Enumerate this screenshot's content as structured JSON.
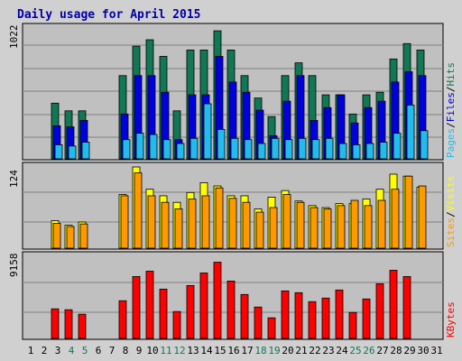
{
  "chart_data": [
    {
      "type": "bar",
      "title": "Daily usage for April 2015",
      "panel": "top",
      "y_tick_label": "1022",
      "right_labels": [
        "Pages",
        "/",
        "Files",
        "/",
        "Hits"
      ],
      "ylim": [
        0,
        1022
      ],
      "x": [
        1,
        2,
        3,
        4,
        5,
        6,
        7,
        8,
        9,
        10,
        11,
        12,
        13,
        14,
        15,
        16,
        17,
        18,
        19,
        20,
        21,
        22,
        23,
        24,
        25,
        26,
        27,
        28,
        29,
        30,
        31
      ],
      "series": [
        {
          "name": "Hits",
          "values": [
            0,
            0,
            435,
            375,
            375,
            0,
            0,
            650,
            880,
            930,
            800,
            375,
            850,
            850,
            1000,
            850,
            650,
            475,
            330,
            650,
            750,
            650,
            500,
            500,
            350,
            500,
            520,
            780,
            900,
            850,
            0
          ]
        },
        {
          "name": "Files",
          "values": [
            0,
            0,
            258,
            250,
            300,
            0,
            0,
            350,
            650,
            650,
            520,
            150,
            500,
            500,
            800,
            600,
            520,
            380,
            180,
            450,
            650,
            300,
            400,
            500,
            280,
            400,
            450,
            600,
            680,
            650,
            0
          ]
        },
        {
          "name": "Pages",
          "values": [
            0,
            0,
            110,
            100,
            130,
            0,
            0,
            150,
            200,
            190,
            150,
            120,
            160,
            430,
            230,
            160,
            150,
            120,
            160,
            150,
            160,
            150,
            160,
            120,
            110,
            120,
            130,
            200,
            420,
            220,
            0
          ]
        }
      ],
      "colors": [
        "#117755",
        "#0000dd",
        "#22bbee"
      ]
    },
    {
      "type": "bar",
      "panel": "middle",
      "y_tick_label": "124",
      "right_labels": [
        "Sites",
        "/",
        "Visits"
      ],
      "ylim": [
        0,
        124
      ],
      "x": [
        1,
        2,
        3,
        4,
        5,
        6,
        7,
        8,
        9,
        10,
        11,
        12,
        13,
        14,
        15,
        16,
        17,
        18,
        19,
        20,
        21,
        22,
        23,
        24,
        25,
        26,
        27,
        28,
        29,
        30,
        31
      ],
      "series": [
        {
          "name": "Visits",
          "values": [
            0,
            0,
            42,
            35,
            40,
            0,
            0,
            82,
            124,
            90,
            80,
            70,
            85,
            100,
            95,
            80,
            80,
            60,
            78,
            88,
            72,
            65,
            62,
            68,
            68,
            75,
            90,
            113,
            110,
            93,
            0
          ]
        },
        {
          "name": "Sites",
          "values": [
            0,
            0,
            38,
            33,
            37,
            0,
            0,
            80,
            115,
            80,
            70,
            60,
            75,
            80,
            92,
            76,
            70,
            55,
            62,
            82,
            70,
            62,
            60,
            65,
            73,
            65,
            73,
            90,
            110,
            95,
            0
          ]
        }
      ],
      "colors": [
        "#ffff00",
        "#ff9900"
      ]
    },
    {
      "type": "bar",
      "panel": "bottom",
      "y_tick_label": "9158",
      "right_labels": [
        "KBytes"
      ],
      "ylim": [
        0,
        9158
      ],
      "x": [
        1,
        2,
        3,
        4,
        5,
        6,
        7,
        8,
        9,
        10,
        11,
        12,
        13,
        14,
        15,
        16,
        17,
        18,
        19,
        20,
        21,
        22,
        23,
        24,
        25,
        26,
        27,
        28,
        29,
        30,
        31
      ],
      "series": [
        {
          "name": "KBytes",
          "values": [
            0,
            0,
            3300,
            3200,
            2700,
            0,
            0,
            4200,
            6900,
            7500,
            5500,
            3000,
            5900,
            7300,
            8500,
            6400,
            4900,
            3500,
            2300,
            5300,
            5100,
            4100,
            4500,
            5400,
            2900,
            4400,
            6100,
            7600,
            6900,
            0,
            0
          ]
        }
      ],
      "colors": [
        "#ff0000"
      ]
    }
  ],
  "x_labels": [
    "1",
    "2",
    "3",
    "4",
    "5",
    "6",
    "7",
    "8",
    "9",
    "10",
    "11",
    "12",
    "13",
    "14",
    "15",
    "16",
    "17",
    "18",
    "19",
    "20",
    "21",
    "22",
    "23",
    "24",
    "25",
    "26",
    "27",
    "28",
    "29",
    "30",
    "31"
  ],
  "weekend_days": [
    4,
    5,
    11,
    12,
    18,
    19,
    25,
    26
  ],
  "colors": {
    "background": "#d0d0d0",
    "panel": "#c0c0c0",
    "grid": "#808080",
    "title": "#0000aa",
    "label": "#000000",
    "weekend_label": "#117755",
    "sites_label": "#ff9900",
    "visits_label": "#ffff00",
    "pages_label": "#22bbee",
    "files_label": "#0000dd",
    "hits_label": "#117755",
    "kbytes_label": "#ff0000"
  }
}
